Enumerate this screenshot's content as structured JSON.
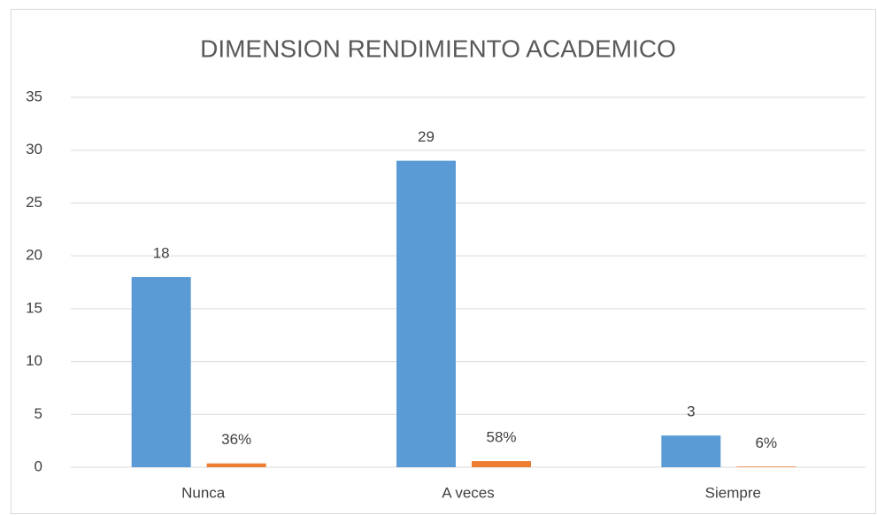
{
  "chart_data": {
    "type": "bar",
    "title": "DIMENSION RENDIMIENTO ACADEMICO",
    "categories": [
      "Nunca",
      "A veces",
      "Siempre"
    ],
    "series": [
      {
        "color": "#5b9bd5",
        "values": [
          18,
          29,
          3
        ]
      },
      {
        "color": "#ed7d31",
        "values": [
          0.36,
          0.58,
          0.06
        ],
        "value_labels": [
          "36%",
          "58%",
          "6%"
        ]
      }
    ],
    "ylim": [
      0,
      35
    ],
    "yticks": [
      0,
      5,
      10,
      15,
      20,
      25,
      30,
      35
    ],
    "grid": true
  }
}
